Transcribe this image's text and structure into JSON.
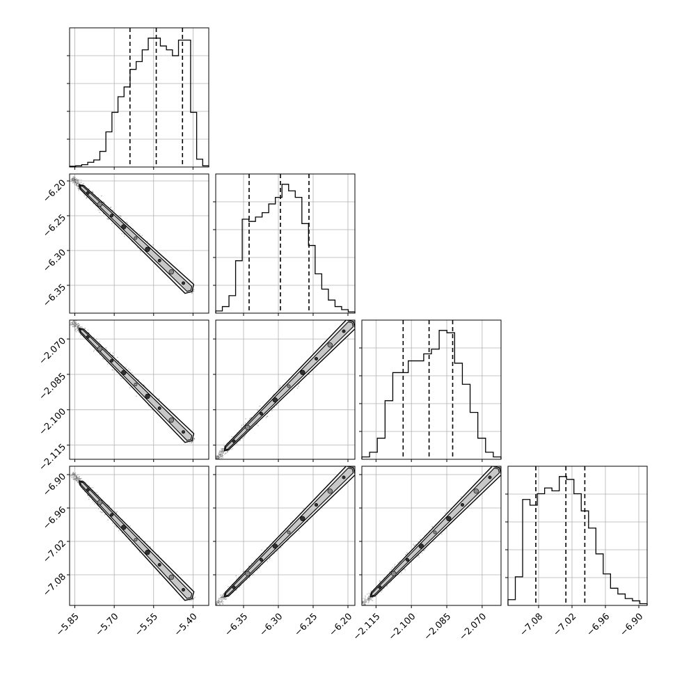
{
  "chart_data": {
    "type": "corner",
    "parameters": [
      {
        "id": "p0",
        "range": [
          -5.87,
          -5.34
        ],
        "ticks": [
          -5.85,
          -5.7,
          -5.55,
          -5.4
        ],
        "tick_labels": [
          "−5.85",
          "−5.70",
          "−5.55",
          "−5.40"
        ],
        "quantiles": [
          -5.64,
          -5.54,
          -5.44
        ]
      },
      {
        "id": "p1",
        "range": [
          -6.39,
          -6.19
        ],
        "ticks": [
          -6.35,
          -6.3,
          -6.25,
          -6.2
        ],
        "tick_labels": [
          "−6.35",
          "−6.30",
          "−6.25",
          "−6.20"
        ],
        "quantiles": [
          -6.342,
          -6.297,
          -6.256
        ]
      },
      {
        "id": "p2",
        "range": [
          -2.121,
          -2.062
        ],
        "ticks": [
          -2.115,
          -2.1,
          -2.085,
          -2.07
        ],
        "tick_labels": [
          "−2.115",
          "−2.100",
          "−2.085",
          "−2.070"
        ],
        "quantiles": [
          -2.1035,
          -2.0925,
          -2.0825
        ]
      },
      {
        "id": "p3",
        "range": [
          -7.135,
          -6.885
        ],
        "ticks": [
          -7.08,
          -7.02,
          -6.96,
          -6.9
        ],
        "tick_labels": [
          "−7.08",
          "−7.02",
          "−6.96",
          "−6.90"
        ],
        "quantiles": [
          -7.085,
          -7.031,
          -6.997
        ]
      }
    ],
    "histograms": [
      [
        2,
        3,
        6,
        12,
        18,
        40,
        90,
        140,
        180,
        205,
        250,
        270,
        300,
        330,
        330,
        310,
        300,
        285,
        325,
        325,
        140,
        20,
        3
      ],
      [
        5,
        15,
        40,
        120,
        215,
        210,
        220,
        230,
        250,
        265,
        295,
        280,
        265,
        205,
        155,
        90,
        55,
        30,
        15,
        8,
        3
      ],
      [
        5,
        15,
        45,
        125,
        185,
        185,
        210,
        210,
        225,
        235,
        275,
        270,
        205,
        160,
        100,
        45,
        15,
        5
      ],
      [
        10,
        50,
        185,
        175,
        195,
        205,
        200,
        225,
        220,
        195,
        165,
        135,
        90,
        55,
        30,
        20,
        12,
        8,
        3
      ]
    ],
    "pairs": [
      {
        "x": 0,
        "y": 1,
        "ridge": [
          [
            -5.86,
            -6.196
          ],
          [
            -5.4,
            -6.36
          ]
        ],
        "samples": 1400
      },
      {
        "x": 0,
        "y": 2,
        "ridge": [
          [
            -5.86,
            -2.0625
          ],
          [
            -5.4,
            -2.1135
          ]
        ],
        "samples": 1400
      },
      {
        "x": 0,
        "y": 3,
        "ridge": [
          [
            -5.86,
            -6.898
          ],
          [
            -5.4,
            -7.125
          ]
        ],
        "samples": 1400
      },
      {
        "x": 1,
        "y": 2,
        "ridge": [
          [
            -6.39,
            -2.121
          ],
          [
            -6.19,
            -2.062
          ]
        ],
        "samples": 1400
      },
      {
        "x": 1,
        "y": 3,
        "ridge": [
          [
            -6.39,
            -7.135
          ],
          [
            -6.19,
            -6.885
          ]
        ],
        "samples": 1400
      },
      {
        "x": 2,
        "y": 3,
        "ridge": [
          [
            -2.121,
            -7.135
          ],
          [
            -2.062,
            -6.885
          ]
        ],
        "samples": 1400
      }
    ],
    "grid": true,
    "colors": {
      "line": "#000000",
      "grid": "#b0b0b0",
      "contour_fill": [
        "#eeeeee",
        "#c8c8c8",
        "#8a8a8a",
        "#303030"
      ]
    }
  }
}
